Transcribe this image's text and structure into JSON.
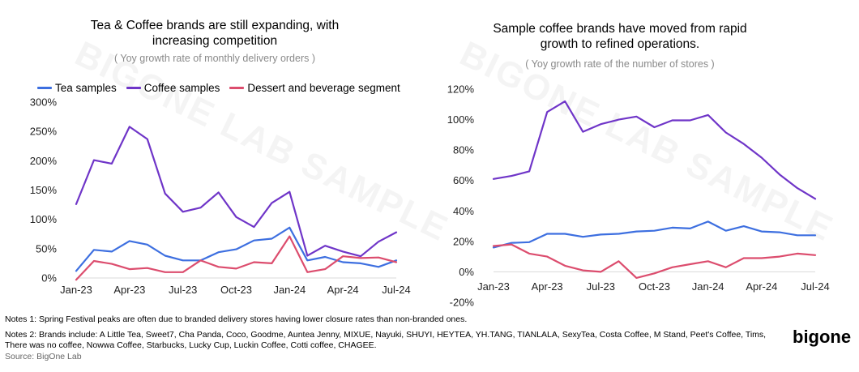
{
  "watermark": "BIGONE LAB SAMPLE",
  "chart_data": [
    {
      "type": "line",
      "title": "Tea & Coffee brands are still expanding, with increasing competition",
      "subtitle": "( Yoy growth rate of monthly delivery orders )",
      "x": [
        "Jan-23",
        "Feb-23",
        "Mar-23",
        "Apr-23",
        "May-23",
        "Jun-23",
        "Jul-23",
        "Aug-23",
        "Sep-23",
        "Oct-23",
        "Nov-23",
        "Dec-23",
        "Jan-24",
        "Feb-24",
        "Mar-24",
        "Apr-24",
        "May-24",
        "Jun-24",
        "Jul-24"
      ],
      "x_tick_labels": [
        "Jan-23",
        "Apr-23",
        "Jul-23",
        "Oct-23",
        "Jan-24",
        "Apr-24",
        "Jul-24"
      ],
      "y_tick_labels": [
        "0%",
        "50%",
        "100%",
        "150%",
        "200%",
        "250%",
        "300%"
      ],
      "ylim": [
        0,
        300
      ],
      "legend_position": "top",
      "grid": false,
      "series": [
        {
          "name": "Tea samples",
          "color": "#3d6fe0",
          "values": [
            12,
            48,
            45,
            63,
            57,
            38,
            30,
            30,
            44,
            49,
            64,
            67,
            86,
            30,
            36,
            27,
            25,
            19,
            30
          ]
        },
        {
          "name": "Coffee samples",
          "color": "#6f35c8",
          "values": [
            126,
            201,
            195,
            258,
            237,
            144,
            113,
            120,
            146,
            104,
            87,
            128,
            147,
            38,
            55,
            45,
            37,
            62,
            78
          ]
        },
        {
          "name": "Dessert and beverage segment",
          "color": "#dc4d6e",
          "values": [
            -3,
            29,
            24,
            15,
            17,
            10,
            10,
            30,
            19,
            16,
            27,
            25,
            71,
            10,
            15,
            37,
            34,
            35,
            27
          ]
        }
      ]
    },
    {
      "type": "line",
      "title": "Sample coffee brands have moved from rapid growth to refined operations.",
      "subtitle": "( Yoy growth rate of the number of stores )",
      "x": [
        "Jan-23",
        "Feb-23",
        "Mar-23",
        "Apr-23",
        "May-23",
        "Jun-23",
        "Jul-23",
        "Aug-23",
        "Sep-23",
        "Oct-23",
        "Nov-23",
        "Dec-23",
        "Jan-24",
        "Feb-24",
        "Mar-24",
        "Apr-24",
        "May-24",
        "Jun-24",
        "Jul-24"
      ],
      "x_tick_labels": [
        "Jan-23",
        "Apr-23",
        "Jul-23",
        "Oct-23",
        "Jan-24",
        "Apr-24",
        "Jul-24"
      ],
      "y_tick_labels": [
        "-20%",
        "0%",
        "20%",
        "40%",
        "60%",
        "80%",
        "100%",
        "120%"
      ],
      "ylim": [
        -20,
        120
      ],
      "grid": false,
      "series": [
        {
          "color": "#6f35c8",
          "values": [
            61,
            63,
            66,
            105,
            112,
            92,
            97,
            100,
            102,
            95,
            99.5,
            99.5,
            103,
            91.5,
            84,
            75,
            64,
            55,
            48
          ]
        },
        {
          "color": "#3d6fe0",
          "values": [
            16,
            19,
            19.5,
            25,
            25,
            23,
            24.5,
            25,
            26.5,
            27,
            29,
            28.5,
            33,
            27,
            30,
            26.5,
            26,
            24,
            24
          ]
        },
        {
          "color": "#dc4d6e",
          "values": [
            17,
            18,
            12,
            10,
            4,
            1,
            0,
            7,
            -4,
            -1,
            3,
            5,
            7,
            3,
            9,
            9,
            10,
            12,
            11
          ]
        }
      ]
    }
  ],
  "notes": {
    "note1": "Notes 1: Spring Festival peaks are often due to branded delivery stores having lower closure rates than non-branded ones.",
    "note2_line1": "Notes 2: Brands include: A Little Tea, Sweet7, Cha Panda, Coco, Goodme, Auntea Jenny, MIXUE, Nayuki, SHUYI, HEYTEA, YH.TANG, TIANLALA, SexyTea, Costa Coffee, M Stand, Peet's Coffee, Tims,",
    "note2_line2": "There was no coffee, Nowwa Coffee, Starbucks, Lucky Cup, Luckin Coffee, Cotti coffee, CHAGEE.",
    "source": "Source:  BigOne Lab"
  },
  "logo": "bigone"
}
